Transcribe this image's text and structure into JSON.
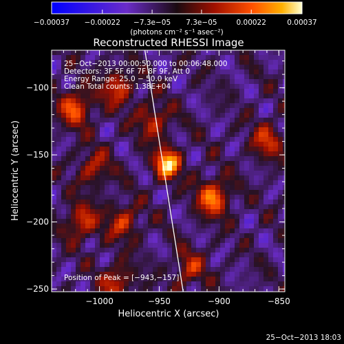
{
  "chart_data": {
    "type": "heatmap",
    "title": "Reconstructed RHESSI Image",
    "xlabel": "Heliocentric X (arcsec)",
    "ylabel": "Heliocentric Y (arcsec)",
    "xlim": [
      -1040,
      -845
    ],
    "ylim": [
      -252,
      -72
    ],
    "x_ticks": [
      {
        "value": -1000,
        "label": "−1000"
      },
      {
        "value": -950,
        "label": "−950"
      },
      {
        "value": -900,
        "label": "−900"
      },
      {
        "value": -850,
        "label": "−850"
      }
    ],
    "y_ticks": [
      {
        "value": -100,
        "label": "−100"
      },
      {
        "value": -150,
        "label": "−150"
      },
      {
        "value": -200,
        "label": "−200"
      },
      {
        "value": -250,
        "label": "−250"
      }
    ],
    "colorbar": {
      "range": [
        -0.00037,
        0.00037
      ],
      "ticks": [
        {
          "value": -0.00037,
          "label": "−0.00037"
        },
        {
          "value": -0.00022,
          "label": "−0.00022"
        },
        {
          "value": -7.3e-05,
          "label": "−7.3e−05"
        },
        {
          "value": 7.3e-05,
          "label": "7.3e−05"
        },
        {
          "value": 0.00022,
          "label": "0.00022"
        },
        {
          "value": 0.00037,
          "label": "0.00037"
        }
      ],
      "unit": "(photons cm⁻² s⁻¹ asec⁻²)"
    },
    "annotations": [
      "25−Oct−2013 00:00:50.000 to 00:06:48.000",
      "Detectors: 3F 5F 6F 7F 8F 9F, Att 0",
      "Energy Range: 25.0 − 50.0 keV",
      "Clean    Total counts: 1.38E+04"
    ],
    "peak_label": "Position of Peak = [−943,−157]",
    "peak": {
      "x": -943,
      "y": -157
    },
    "limb_line": [
      [
        -962,
        -72
      ],
      [
        -930,
        -252
      ]
    ],
    "bright_sources": [
      {
        "x": -943,
        "y": -157,
        "strength": 1.0
      },
      {
        "x": -905,
        "y": -182,
        "strength": 0.75
      },
      {
        "x": -1020,
        "y": -115,
        "strength": 0.65
      },
      {
        "x": -985,
        "y": -100,
        "strength": 0.55
      },
      {
        "x": -1015,
        "y": -200,
        "strength": 0.55
      },
      {
        "x": -980,
        "y": -200,
        "strength": 0.5
      },
      {
        "x": -955,
        "y": -125,
        "strength": 0.5
      },
      {
        "x": -860,
        "y": -140,
        "strength": 0.5
      },
      {
        "x": -925,
        "y": -235,
        "strength": 0.45
      },
      {
        "x": -985,
        "y": -245,
        "strength": 0.5
      },
      {
        "x": -1005,
        "y": -160,
        "strength": 0.45
      }
    ]
  },
  "footer_timestamp": "25−Oct−2013 18:03",
  "colors": {
    "background": "#000000",
    "text": "#ffffff",
    "colormap": [
      "#0000ff",
      "#6a2cc8",
      "#2a1a2a",
      "#800000",
      "#ff4000",
      "#ff9a00",
      "#ffffc0"
    ]
  }
}
